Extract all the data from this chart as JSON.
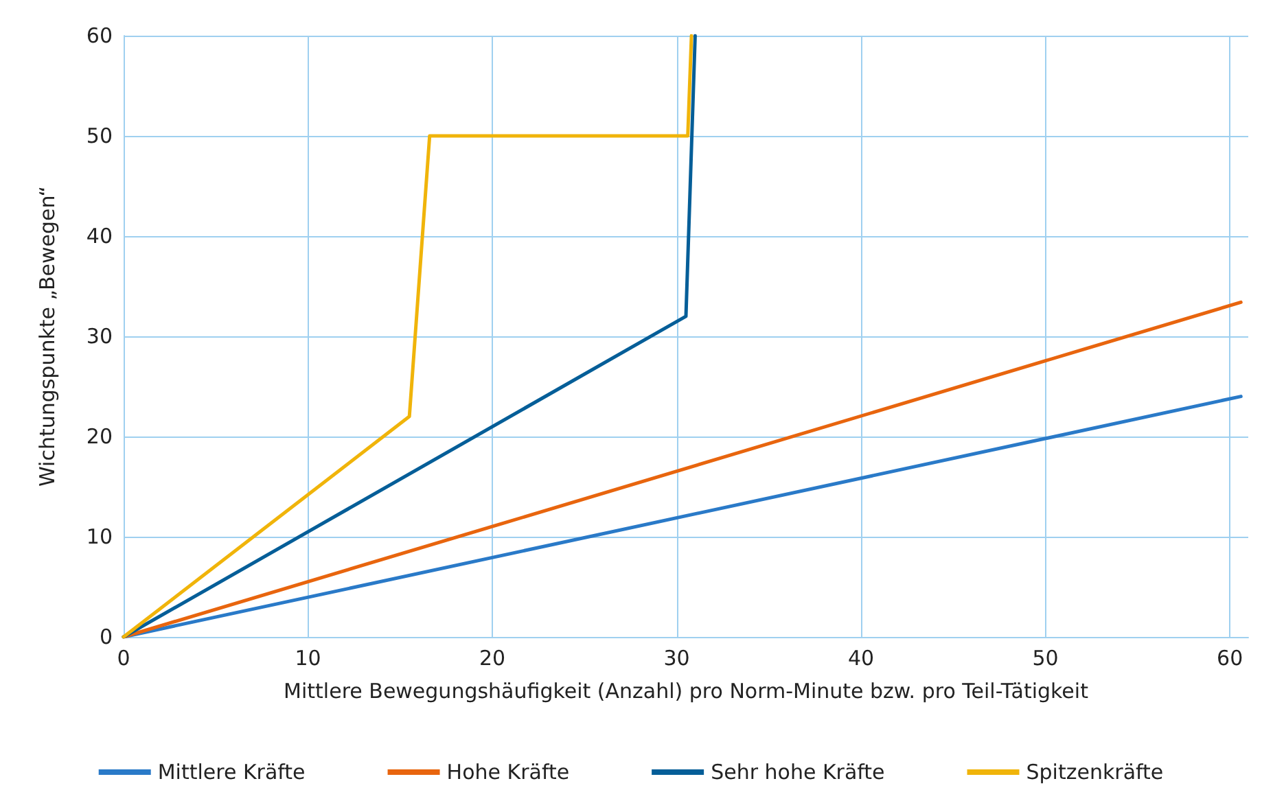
{
  "chart_data": {
    "type": "line",
    "xlabel": "Mittlere Bewegungshäufigkeit (Anzahl) pro Norm-Minute bzw. pro Teil-Tätigkeit",
    "ylabel": "Wichtungspunkte „Bewegen“",
    "series": [
      {
        "name": "Mittlere Kräfte",
        "color": "#2a7ac8",
        "x": [
          0,
          60.6
        ],
        "values": [
          0,
          24
        ]
      },
      {
        "name": "Hohe Kräfte",
        "color": "#e8650e",
        "x": [
          0,
          60.6
        ],
        "values": [
          0,
          33.4
        ]
      },
      {
        "name": "Sehr hohe Kräfte",
        "color": "#055e98",
        "x": [
          0,
          30.5,
          31
        ],
        "values": [
          0,
          32,
          60
        ]
      },
      {
        "name": "Spitzenkräfte",
        "color": "#f0b40a",
        "x": [
          0,
          15.5,
          16.6,
          30.6,
          30.8
        ],
        "values": [
          0,
          22,
          50,
          50,
          60
        ]
      }
    ],
    "xlim": [
      0,
      61
    ],
    "xticks": [
      0,
      10,
      20,
      30,
      40,
      50,
      60
    ],
    "ylim": [
      0,
      60
    ],
    "yticks": [
      0,
      10,
      20,
      30,
      40,
      50,
      60
    ],
    "grid": true,
    "legend": "bottom",
    "marker": "none",
    "line_style": "solid"
  }
}
